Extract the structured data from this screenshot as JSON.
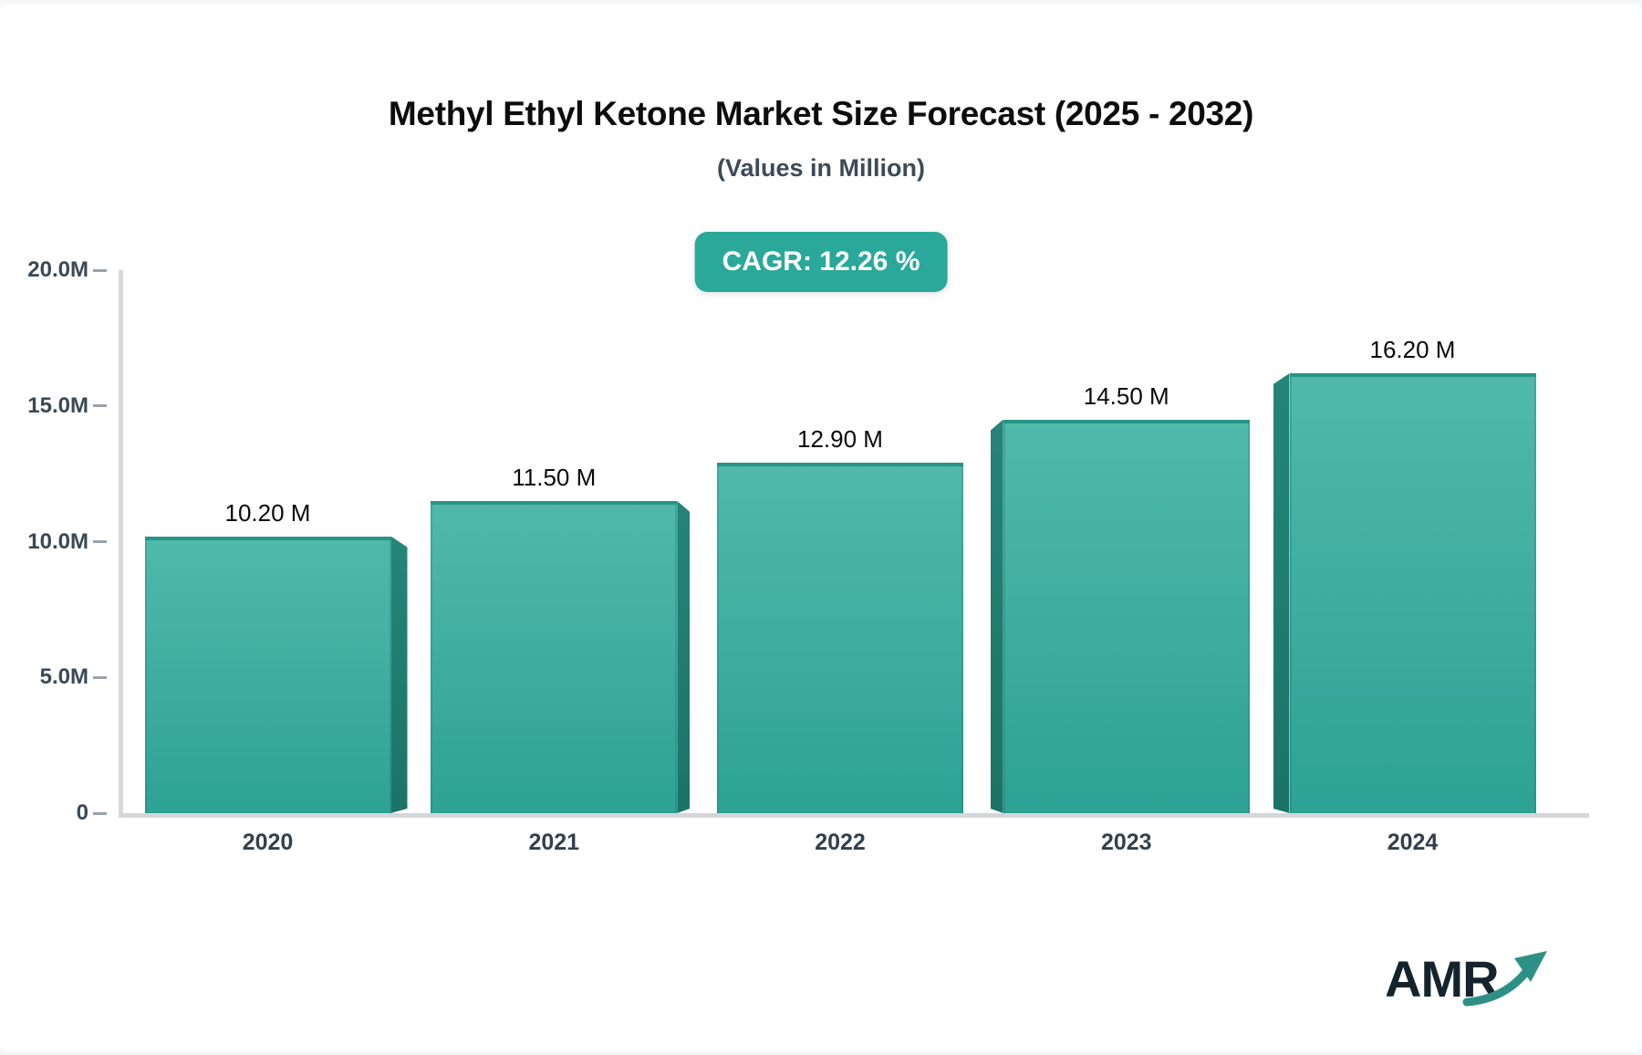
{
  "page": {
    "background": "#f4f6f8",
    "card_background": "#ffffff"
  },
  "header": {
    "title": "Methyl Ethyl Ketone Market Size Forecast (2025 - 2032)",
    "subtitle": "(Values in Million)"
  },
  "badge": {
    "label": "CAGR: 12.26 %",
    "background": "#2aa89a",
    "text_color": "#ffffff"
  },
  "chart_data": {
    "type": "bar",
    "title": "Methyl Ethyl Ketone Market Size Forecast (2025 - 2032)",
    "subtitle": "(Values in Million)",
    "categories": [
      "2020",
      "2021",
      "2022",
      "2023",
      "2024"
    ],
    "values": [
      10.2,
      11.5,
      12.9,
      14.5,
      16.2
    ],
    "value_labels": [
      "10.20 M",
      "11.50 M",
      "12.90 M",
      "14.50 M",
      "16.20 M"
    ],
    "y_tick_labels": [
      "20.0M",
      "15.0M",
      "10.0M",
      "5.0M",
      "0"
    ],
    "y_tick_values": [
      20,
      15,
      10,
      5,
      0
    ],
    "ylim": [
      0,
      20
    ],
    "xlabel": "",
    "ylabel": "",
    "grid": false,
    "legend": false,
    "style_3d": true,
    "bar_color_top": "#50b9aa",
    "bar_color_bottom": "#2da295",
    "bar_side_color": "#1f7d71",
    "bar_top_edge_color": "#269587",
    "axis_line_color": "#d5d8dd",
    "tick_color": "#9aa2ac"
  },
  "logo": {
    "text": "AMR",
    "text_color": "#15232d",
    "arrow_color": "#2d9086"
  }
}
